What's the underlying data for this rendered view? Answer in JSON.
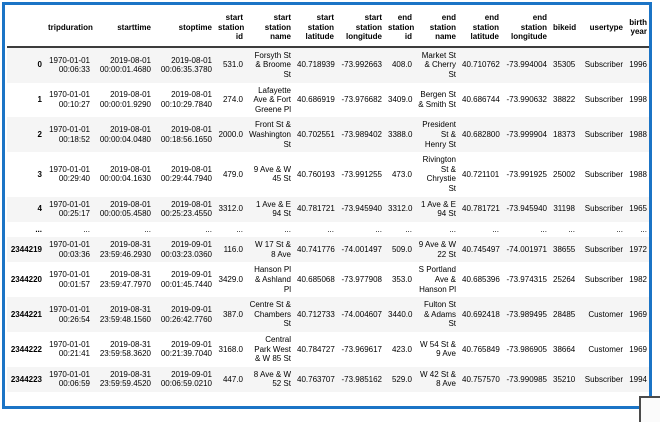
{
  "colors": {
    "frame_border": "#1b74c6",
    "header_rule": "#3d3d3d",
    "row_stripe": "#f5f5f5",
    "corner_border": "#4b4b4b"
  },
  "table": {
    "index_header": "",
    "columns": [
      "tripduration",
      "starttime",
      "stoptime",
      "start station id",
      "start station name",
      "start station latitude",
      "start station longitude",
      "end station id",
      "end station name",
      "end station latitude",
      "end station longitude",
      "bikeid",
      "usertype",
      "birth year"
    ],
    "rows": [
      {
        "index": "0",
        "cells": [
          "1970-01-01 00:06:33",
          "2019-08-01 00:00:01.4680",
          "2019-08-01 00:06:35.3780",
          "531.0",
          "Forsyth St & Broome St",
          "40.718939",
          "-73.992663",
          "408.0",
          "Market St & Cherry St",
          "40.710762",
          "-73.994004",
          "35305",
          "Subscriber",
          "1996"
        ]
      },
      {
        "index": "1",
        "cells": [
          "1970-01-01 00:10:27",
          "2019-08-01 00:00:01.9290",
          "2019-08-01 00:10:29.7840",
          "274.0",
          "Lafayette Ave & Fort Greene Pl",
          "40.686919",
          "-73.976682",
          "3409.0",
          "Bergen St & Smith St",
          "40.686744",
          "-73.990632",
          "38822",
          "Subscriber",
          "1998"
        ]
      },
      {
        "index": "2",
        "cells": [
          "1970-01-01 00:18:52",
          "2019-08-01 00:00:04.0480",
          "2019-08-01 00:18:56.1650",
          "2000.0",
          "Front St & Washington St",
          "40.702551",
          "-73.989402",
          "3388.0",
          "President St & Henry St",
          "40.682800",
          "-73.999904",
          "18373",
          "Subscriber",
          "1988"
        ]
      },
      {
        "index": "3",
        "cells": [
          "1970-01-01 00:29:40",
          "2019-08-01 00:00:04.1630",
          "2019-08-01 00:29:44.7940",
          "479.0",
          "9 Ave & W 45 St",
          "40.760193",
          "-73.991255",
          "473.0",
          "Rivington St & Chrystie St",
          "40.721101",
          "-73.991925",
          "25002",
          "Subscriber",
          "1988"
        ]
      },
      {
        "index": "4",
        "cells": [
          "1970-01-01 00:25:17",
          "2019-08-01 00:00:05.4580",
          "2019-08-01 00:25:23.4550",
          "3312.0",
          "1 Ave & E 94 St",
          "40.781721",
          "-73.945940",
          "3312.0",
          "1 Ave & E 94 St",
          "40.781721",
          "-73.945940",
          "31198",
          "Subscriber",
          "1965"
        ]
      },
      {
        "index": "...",
        "cells": [
          "...",
          "...",
          "...",
          "...",
          "...",
          "...",
          "...",
          "...",
          "...",
          "...",
          "...",
          "...",
          "...",
          "..."
        ]
      },
      {
        "index": "2344219",
        "cells": [
          "1970-01-01 00:03:36",
          "2019-08-31 23:59:46.2930",
          "2019-09-01 00:03:23.0360",
          "116.0",
          "W 17 St & 8 Ave",
          "40.741776",
          "-74.001497",
          "509.0",
          "9 Ave & W 22 St",
          "40.745497",
          "-74.001971",
          "38655",
          "Subscriber",
          "1972"
        ]
      },
      {
        "index": "2344220",
        "cells": [
          "1970-01-01 00:01:57",
          "2019-08-31 23:59:47.7970",
          "2019-09-01 00:01:45.7440",
          "3429.0",
          "Hanson Pl & Ashland Pl",
          "40.685068",
          "-73.977908",
          "353.0",
          "S Portland Ave & Hanson Pl",
          "40.685396",
          "-73.974315",
          "25264",
          "Subscriber",
          "1982"
        ]
      },
      {
        "index": "2344221",
        "cells": [
          "1970-01-01 00:26:54",
          "2019-08-31 23:59:48.1560",
          "2019-09-01 00:26:42.7760",
          "387.0",
          "Centre St & Chambers St",
          "40.712733",
          "-74.004607",
          "3440.0",
          "Fulton St & Adams St",
          "40.692418",
          "-73.989495",
          "28485",
          "Customer",
          "1969"
        ]
      },
      {
        "index": "2344222",
        "cells": [
          "1970-01-01 00:21:41",
          "2019-08-31 23:59:58.3620",
          "2019-09-01 00:21:39.7040",
          "3168.0",
          "Central Park West & W 85 St",
          "40.784727",
          "-73.969617",
          "423.0",
          "W 54 St & 9 Ave",
          "40.765849",
          "-73.986905",
          "38664",
          "Customer",
          "1969"
        ]
      },
      {
        "index": "2344223",
        "cells": [
          "1970-01-01 00:06:59",
          "2019-08-31 23:59:59.4520",
          "2019-09-01 00:06:59.0210",
          "447.0",
          "8 Ave & W 52 St",
          "40.763707",
          "-73.985162",
          "529.0",
          "W 42 St & 8 Ave",
          "40.757570",
          "-73.990985",
          "35210",
          "Subscriber",
          "1994"
        ]
      }
    ]
  }
}
